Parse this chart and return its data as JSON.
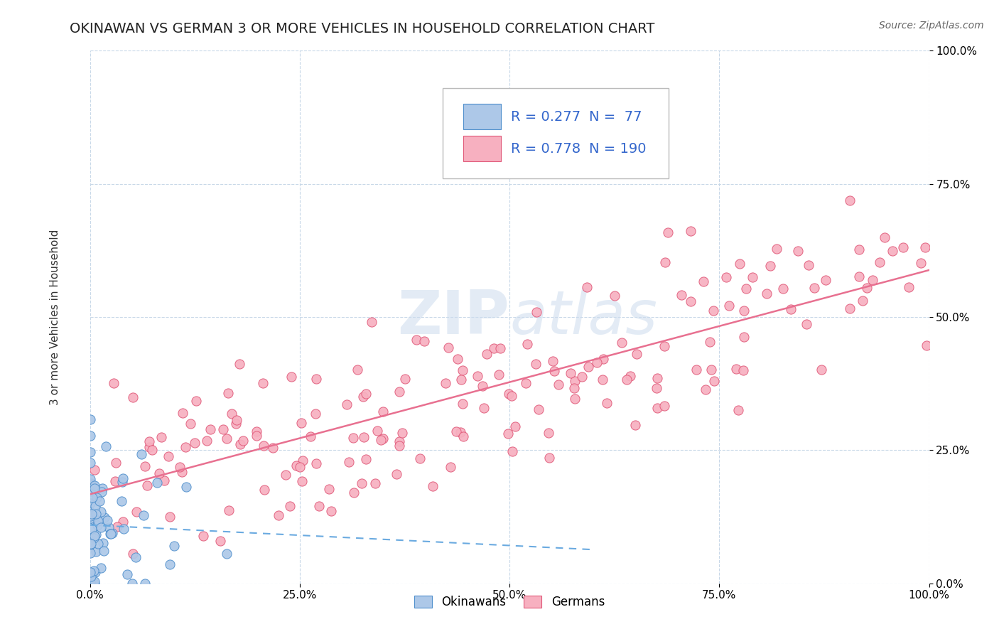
{
  "title": "OKINAWAN VS GERMAN 3 OR MORE VEHICLES IN HOUSEHOLD CORRELATION CHART",
  "source": "Source: ZipAtlas.com",
  "ylabel": "3 or more Vehicles in Household",
  "xmin": 0.0,
  "xmax": 1.0,
  "ymin": 0.0,
  "ymax": 1.0,
  "x_tick_labels": [
    "0.0%",
    "25.0%",
    "50.0%",
    "75.0%",
    "100.0%"
  ],
  "x_tick_vals": [
    0.0,
    0.25,
    0.5,
    0.75,
    1.0
  ],
  "y_tick_labels": [
    "0.0%",
    "25.0%",
    "50.0%",
    "75.0%",
    "100.0%"
  ],
  "y_tick_vals": [
    0.0,
    0.25,
    0.5,
    0.75,
    1.0
  ],
  "okinawan_fill": "#adc8e8",
  "okinawan_edge": "#4f8fcc",
  "german_fill": "#f7b0c0",
  "german_edge": "#e05878",
  "trendline_okinawan_color": "#6aaae0",
  "trendline_german_color": "#e87090",
  "legend_box_okinawan": "#adc8e8",
  "legend_box_okinawan_edge": "#4f8fcc",
  "legend_box_german": "#f7b0c0",
  "legend_box_german_edge": "#e05878",
  "R_okinawan": 0.277,
  "N_okinawan": 77,
  "R_german": 0.778,
  "N_german": 190,
  "legend_text_color": "#3366cc",
  "watermark_zip": "ZIP",
  "watermark_atlas": "atlas",
  "background_color": "#ffffff",
  "grid_color": "#c8d8e8",
  "title_fontsize": 14,
  "source_fontsize": 10,
  "tick_fontsize": 11,
  "legend_fontsize": 14,
  "ylabel_fontsize": 11
}
